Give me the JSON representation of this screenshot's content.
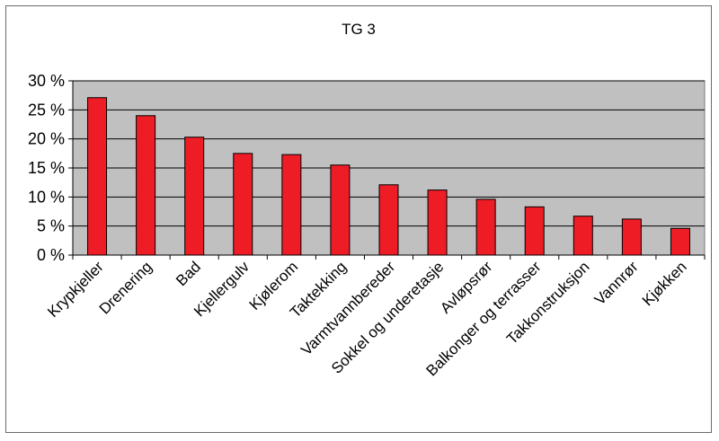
{
  "chart_data": {
    "type": "bar",
    "title": "TG 3",
    "xlabel": "",
    "ylabel": "",
    "ylim": [
      0,
      30
    ],
    "yticks": [
      "0 %",
      "5 %",
      "10 %",
      "15 %",
      "20 %",
      "25 %",
      "30 %"
    ],
    "ytick_values": [
      0,
      5,
      10,
      15,
      20,
      25,
      30
    ],
    "grid": true,
    "legend": "none",
    "categories": [
      "Krypkjeller",
      "Drenering",
      "Bad",
      "Kjellergulv",
      "Kjølerom",
      "Taktekking",
      "Varmtvannbereder",
      "Sokkel og underetasje",
      "Avløpsrør",
      "Balkonger og terrasser",
      "Takkonstruksjon",
      "Vannrør",
      "Kjøkken"
    ],
    "values": [
      27.1,
      24.0,
      20.3,
      17.5,
      17.3,
      15.5,
      12.1,
      11.2,
      9.6,
      8.3,
      6.7,
      6.2,
      4.6
    ],
    "colors": {
      "bar": "#ee1c25",
      "bar_stroke": "#000000",
      "plot_bg": "#c0c0c0",
      "grid": "#000000"
    }
  }
}
